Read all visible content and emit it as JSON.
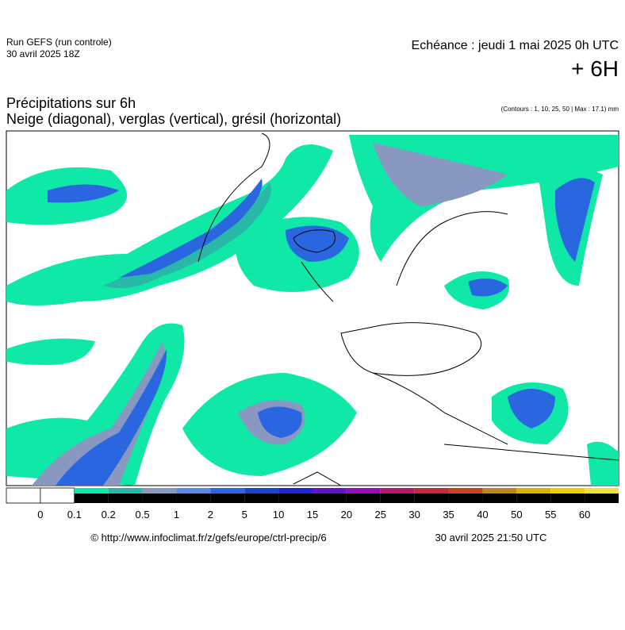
{
  "header": {
    "run": "Run GEFS (run controle)",
    "run_date": "30 avril 2025 18Z",
    "echeance": "Echéance : jeudi 1 mai 2025 0h UTC",
    "offset": "+ 6H",
    "title": "Précipitations sur 6h",
    "subtitle": "Neige (diagonal), verglas (vertical), grésil (horizontal)",
    "contours": "(Contours : 1, 10, 25, 50 | Max : 17.1) mm"
  },
  "legend": {
    "labels": [
      "0",
      "0.1",
      "0.2",
      "0.5",
      "1",
      "2",
      "5",
      "10",
      "15",
      "20",
      "25",
      "30",
      "35",
      "40",
      "50",
      "55",
      "60"
    ],
    "colors": [
      "#ffffff",
      "#ffffff",
      "#10e8a8",
      "#28b8a8",
      "#8898c0",
      "#5888e0",
      "#2a66e0",
      "#1c44c8",
      "#2424d0",
      "#6414c4",
      "#9410b0",
      "#b41870",
      "#c02c3c",
      "#c04620",
      "#c08424",
      "#e0b000",
      "#f0d000",
      "#f0e040"
    ]
  },
  "footer": {
    "url": "© http://www.infoclimat.fr/z/gefs/europe/ctrl-precip/6",
    "timestamp": "30 avril 2025 21:50 UTC"
  }
}
